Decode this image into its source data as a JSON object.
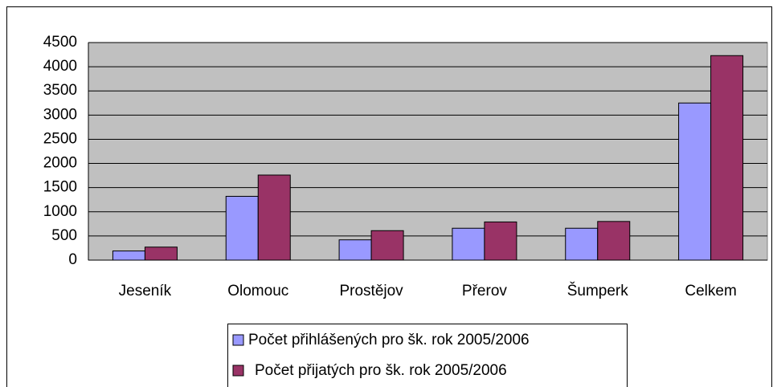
{
  "chart_data": {
    "type": "bar",
    "categories": [
      "Jeseník",
      "Olomouc",
      "Prostějov",
      "Přerov",
      "Šumperk",
      "Celkem"
    ],
    "series": [
      {
        "name": "Počet přihlášených pro šk. rok 2005/2006",
        "color": "#9999ff",
        "values": [
          190,
          1320,
          420,
          660,
          660,
          3250
        ]
      },
      {
        "name": "Počet přijatých pro šk. rok 2005/2006",
        "color": "#993366",
        "values": [
          270,
          1760,
          610,
          790,
          800,
          4230
        ]
      }
    ],
    "ylim": [
      0,
      4500
    ],
    "yticks": [
      0,
      500,
      1000,
      1500,
      2000,
      2500,
      3000,
      3500,
      4000,
      4500
    ],
    "grid": true,
    "legend": "bottom"
  }
}
